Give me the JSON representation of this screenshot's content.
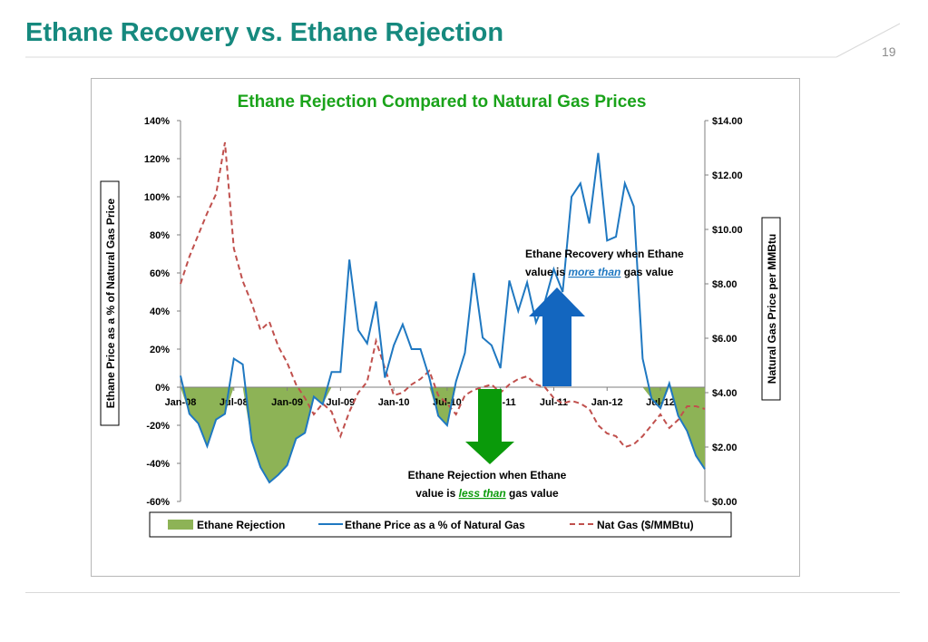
{
  "slide": {
    "title": "Ethane Recovery vs. Ethane Rejection",
    "page_number": "19"
  },
  "colors": {
    "title": "#16897e",
    "rejection_fill": "#8db356",
    "ethane_line": "#1f78c1",
    "natgas_line": "#c0504d",
    "recovery_arrow": "#1366bf",
    "rejection_arrow": "#0a9a0a",
    "chart_title": "#1aa31a"
  },
  "chart_data": {
    "type": "line",
    "title": "Ethane Rejection Compared to Natural Gas Prices",
    "y_left_label": "Ethane Price as a % of Natural Gas Price",
    "y_right_label": "Natural Gas Price per MMBtu",
    "y_left_range": [
      -0.6,
      1.4
    ],
    "y_right_range": [
      0,
      14
    ],
    "y_left_ticks": [
      "140%",
      "120%",
      "100%",
      "80%",
      "60%",
      "40%",
      "20%",
      "0%",
      "-20%",
      "-40%",
      "-60%"
    ],
    "y_right_ticks": [
      "$14.00",
      "$12.00",
      "$10.00",
      "$8.00",
      "$6.00",
      "$4.00",
      "$2.00",
      "$0.00"
    ],
    "x_tick_labels": [
      "Jan-08",
      "Jul-08",
      "Jan-09",
      "Jul-09",
      "Jan-10",
      "Jul-10",
      "Jan-11",
      "Jul-11",
      "Jan-12",
      "Jul-12"
    ],
    "x_months": [
      "2008-01",
      "2008-02",
      "2008-03",
      "2008-04",
      "2008-05",
      "2008-06",
      "2008-07",
      "2008-08",
      "2008-09",
      "2008-10",
      "2008-11",
      "2008-12",
      "2009-01",
      "2009-02",
      "2009-03",
      "2009-04",
      "2009-05",
      "2009-06",
      "2009-07",
      "2009-08",
      "2009-09",
      "2009-10",
      "2009-11",
      "2009-12",
      "2010-01",
      "2010-02",
      "2010-03",
      "2010-04",
      "2010-05",
      "2010-06",
      "2010-07",
      "2010-08",
      "2010-09",
      "2010-10",
      "2010-11",
      "2010-12",
      "2011-01",
      "2011-02",
      "2011-03",
      "2011-04",
      "2011-05",
      "2011-06",
      "2011-07",
      "2011-08",
      "2011-09",
      "2011-10",
      "2011-11",
      "2011-12",
      "2012-01",
      "2012-02",
      "2012-03",
      "2012-04",
      "2012-05",
      "2012-06",
      "2012-07",
      "2012-08",
      "2012-09",
      "2012-10",
      "2012-11",
      "2012-12"
    ],
    "legend_position": "bottom",
    "series": [
      {
        "name": "Ethane Rejection",
        "kind": "area",
        "note": "filled where ethane price is below 0%"
      },
      {
        "name": "Ethane Price as a % of Natural Gas",
        "kind": "line",
        "axis": "left",
        "values": [
          0.06,
          -0.14,
          -0.19,
          -0.31,
          -0.17,
          -0.14,
          0.15,
          0.12,
          -0.28,
          -0.42,
          -0.5,
          -0.46,
          -0.41,
          -0.27,
          -0.24,
          -0.05,
          -0.09,
          0.08,
          0.08,
          0.67,
          0.3,
          0.23,
          0.45,
          0.05,
          0.22,
          0.33,
          0.2,
          0.2,
          0.05,
          -0.15,
          -0.2,
          0.03,
          0.18,
          0.6,
          0.26,
          0.22,
          0.1,
          0.56,
          0.4,
          0.55,
          0.34,
          0.45,
          0.62,
          0.5,
          1.0,
          1.07,
          0.86,
          1.23,
          0.77,
          0.79,
          1.07,
          0.95,
          0.15,
          -0.06,
          -0.11,
          0.02,
          -0.15,
          -0.23,
          -0.36,
          -0.43
        ]
      },
      {
        "name": "Nat Gas ($/MMBtu)",
        "kind": "line",
        "dashed": true,
        "axis": "right",
        "values": [
          8.0,
          9.0,
          9.8,
          10.6,
          11.3,
          13.2,
          9.3,
          8.1,
          7.3,
          6.3,
          6.6,
          5.7,
          5.1,
          4.3,
          3.8,
          3.2,
          3.6,
          3.3,
          2.4,
          3.3,
          4.0,
          4.4,
          5.9,
          4.9,
          3.9,
          4.0,
          4.3,
          4.5,
          4.8,
          3.9,
          3.6,
          3.2,
          3.9,
          4.1,
          4.2,
          4.3,
          4.0,
          4.3,
          4.5,
          4.6,
          4.3,
          4.2,
          3.8,
          3.6,
          3.7,
          3.6,
          3.4,
          2.8,
          2.5,
          2.4,
          2.0,
          2.1,
          2.4,
          2.8,
          3.2,
          2.7,
          3.0,
          3.5,
          3.5,
          3.4
        ]
      }
    ],
    "annotations": {
      "recovery_line1": "Ethane Recovery  when Ethane",
      "recovery_line2_pre": "value  is ",
      "recovery_emph": "more than",
      "recovery_line2_post": " gas value",
      "rejection_line1": "Ethane Rejection when  Ethane",
      "rejection_line2_pre": "value is ",
      "rejection_emph": "less than",
      "rejection_line2_post": " gas value"
    }
  }
}
